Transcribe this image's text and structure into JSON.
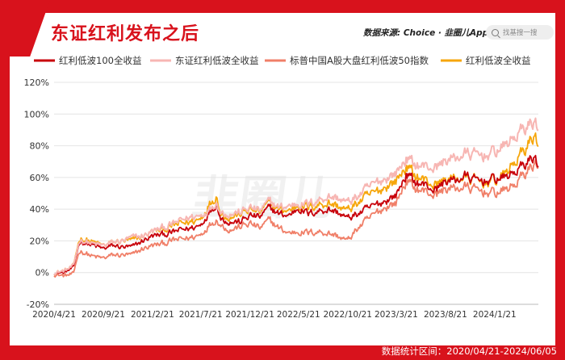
{
  "header": {
    "title": "东证红利发布之后",
    "source": "数据来源: Choice · 韭圈儿App",
    "search_placeholder": "找基搜一搜"
  },
  "footer": {
    "stat_range": "数据统计区间：2020/04/21-2024/06/05"
  },
  "watermark": "韭圈儿",
  "colors": {
    "brand_red": "#d8121c",
    "series": [
      "#c8000a",
      "#f7b6b3",
      "#f07f68",
      "#f6a60a"
    ]
  },
  "chart_data": {
    "type": "line",
    "title": "东证红利发布之后",
    "ylim": [
      -20,
      120
    ],
    "yticks": [
      -20,
      0,
      20,
      40,
      60,
      80,
      100,
      120
    ],
    "ytick_suffix": "%",
    "xlim": [
      "2020-04-21",
      "2024-06-05"
    ],
    "xticks": [
      "2020/4/21",
      "2020/9/21",
      "2021/2/21",
      "2021/7/21",
      "2021/12/21",
      "2022/5/21",
      "2022/10/21",
      "2023/3/21",
      "2023/8/21",
      "2024/1/21"
    ],
    "grid": "horizontal",
    "legend_position": "top",
    "dates": [
      "2020-04-21",
      "2020-05-21",
      "2020-06-21",
      "2020-06-30",
      "2020-07-10",
      "2020-08-21",
      "2020-09-21",
      "2020-10-21",
      "2020-11-21",
      "2020-12-21",
      "2021-01-21",
      "2021-02-21",
      "2021-03-21",
      "2021-04-21",
      "2021-05-21",
      "2021-06-21",
      "2021-07-21",
      "2021-08-15",
      "2021-09-10",
      "2021-09-21",
      "2021-10-21",
      "2021-11-21",
      "2021-12-21",
      "2022-01-21",
      "2022-02-21",
      "2022-03-21",
      "2022-04-21",
      "2022-05-21",
      "2022-06-21",
      "2022-07-21",
      "2022-08-21",
      "2022-09-21",
      "2022-10-21",
      "2022-11-21",
      "2022-12-21",
      "2023-01-21",
      "2023-02-21",
      "2023-03-21",
      "2023-04-21",
      "2023-05-21",
      "2023-06-21",
      "2023-07-21",
      "2023-08-21",
      "2023-09-21",
      "2023-10-21",
      "2023-11-21",
      "2023-12-21",
      "2024-01-21",
      "2024-02-21",
      "2024-03-21",
      "2024-04-21",
      "2024-05-21",
      "2024-06-05"
    ],
    "series": [
      {
        "name": "红利低波100全收益",
        "values": [
          0,
          0,
          3,
          12,
          20,
          17,
          15,
          17,
          16,
          16,
          20,
          23,
          24,
          25,
          27,
          28,
          30,
          38,
          44,
          34,
          32,
          32,
          36,
          35,
          41,
          37,
          36,
          41,
          37,
          39,
          40,
          38,
          34,
          37,
          40,
          43,
          46,
          49,
          62,
          57,
          55,
          52,
          58,
          58,
          61,
          58,
          58,
          59,
          60,
          63,
          68,
          73,
          69
        ]
      },
      {
        "name": "东证红利低波全收益",
        "values": [
          0,
          1,
          4,
          13,
          21,
          18,
          17,
          19,
          20,
          22,
          23,
          26,
          28,
          30,
          33,
          35,
          36,
          40,
          45,
          38,
          37,
          38,
          41,
          39,
          45,
          41,
          42,
          44,
          43,
          46,
          48,
          47,
          44,
          48,
          53,
          57,
          60,
          63,
          72,
          68,
          67,
          66,
          71,
          72,
          75,
          74,
          74,
          76,
          80,
          85,
          91,
          95,
          93
        ]
      },
      {
        "name": "标普中国A股大盘红利低波50指数",
        "values": [
          -1,
          -2,
          -1,
          8,
          14,
          10,
          9,
          11,
          11,
          11,
          15,
          17,
          18,
          20,
          21,
          22,
          24,
          30,
          34,
          30,
          27,
          29,
          31,
          28,
          33,
          28,
          25,
          26,
          25,
          26,
          25,
          23,
          20,
          28,
          33,
          38,
          42,
          44,
          58,
          53,
          51,
          49,
          53,
          53,
          54,
          52,
          51,
          50,
          52,
          55,
          62,
          68,
          69
        ]
      },
      {
        "name": "红利低波全收益",
        "values": [
          0,
          1,
          4,
          14,
          22,
          19,
          17,
          19,
          20,
          20,
          23,
          26,
          27,
          29,
          31,
          32,
          34,
          43,
          49,
          37,
          35,
          37,
          40,
          38,
          44,
          40,
          39,
          43,
          41,
          43,
          44,
          42,
          39,
          44,
          48,
          51,
          55,
          58,
          67,
          61,
          58,
          55,
          59,
          59,
          60,
          58,
          57,
          58,
          62,
          69,
          77,
          86,
          83
        ]
      }
    ]
  }
}
